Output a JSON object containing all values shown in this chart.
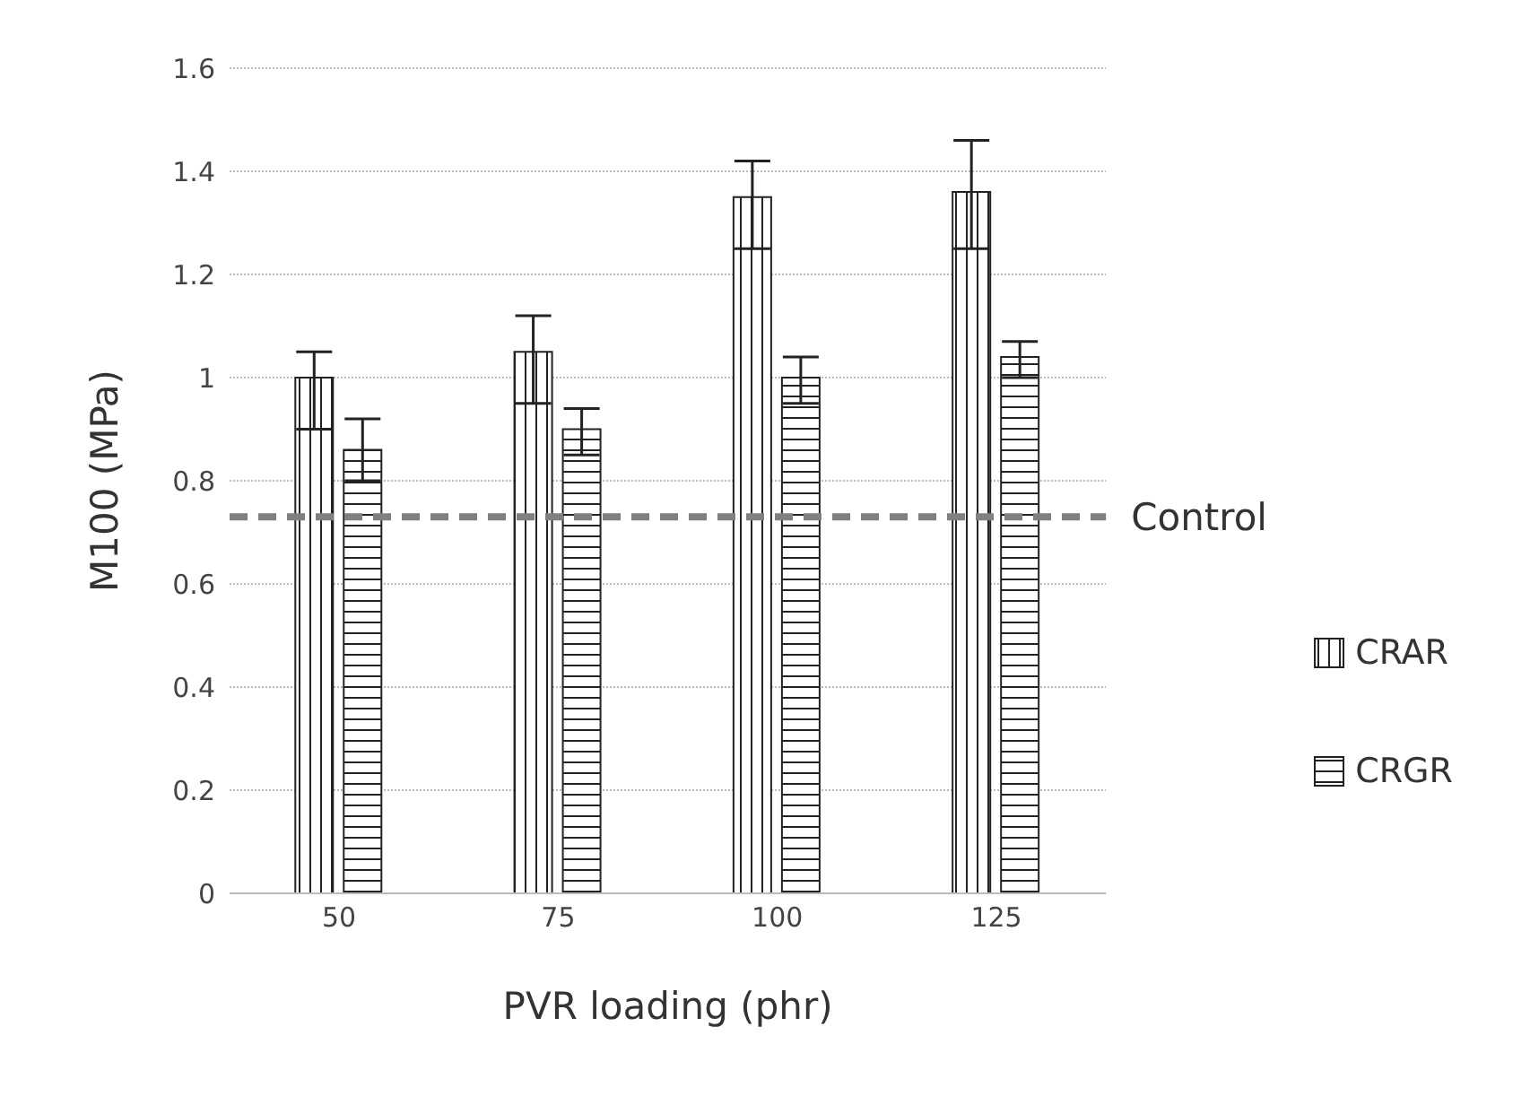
{
  "chart_data": {
    "type": "bar",
    "xlabel": "PVR loading (phr)",
    "ylabel": "M100 (MPa)",
    "categories": [
      "50",
      "75",
      "100",
      "125"
    ],
    "series": [
      {
        "name": "CRAR",
        "color": "#222222",
        "values": [
          1.0,
          1.05,
          1.35,
          1.36
        ],
        "errors": [
          [
            0.9,
            1.05
          ],
          [
            0.95,
            1.12
          ],
          [
            1.25,
            1.42
          ],
          [
            1.25,
            1.46
          ]
        ]
      },
      {
        "name": "CRGR",
        "color": "#222222",
        "values": [
          0.86,
          0.9,
          1.0,
          1.04
        ],
        "errors": [
          [
            0.8,
            0.92
          ],
          [
            0.85,
            0.94
          ],
          [
            0.95,
            1.04
          ],
          [
            1.0,
            1.07
          ]
        ]
      }
    ],
    "ylim": [
      0,
      1.6
    ],
    "yticks": [
      0,
      0.2,
      0.4,
      0.6,
      0.8,
      1,
      1.2,
      1.4,
      1.6
    ],
    "grid": "y",
    "legend": "right",
    "ref_lines": [
      {
        "axis": "y",
        "value": 0.73,
        "label": "Control",
        "color": "#808080",
        "line_style": "dashed"
      }
    ]
  }
}
